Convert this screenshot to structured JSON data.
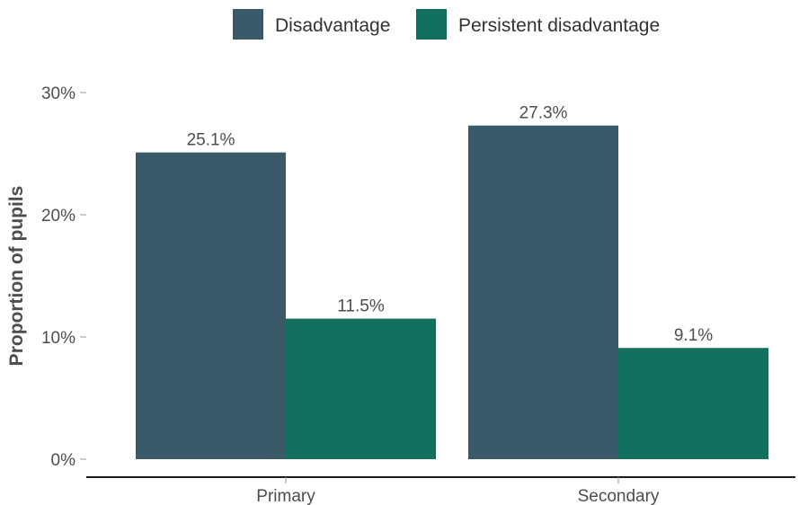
{
  "chart_data": {
    "type": "bar",
    "categories": [
      "Primary",
      "Secondary"
    ],
    "series": [
      {
        "name": "Disadvantage",
        "values": [
          25.1,
          27.3
        ],
        "color": "#3a5a69",
        "labels": [
          "25.1%",
          "27.3%"
        ]
      },
      {
        "name": "Persistent disadvantage",
        "values": [
          11.5,
          9.1
        ],
        "color": "#126f5e",
        "labels": [
          "11.5%",
          "9.1%"
        ]
      }
    ],
    "ylabel": "Proportion of pupils",
    "ylim": [
      0,
      30
    ],
    "yticks": [
      0,
      10,
      20,
      30
    ],
    "ytick_labels": [
      "0%",
      "10%",
      "20%",
      "30%"
    ],
    "legend_position": "top",
    "grid": false
  }
}
